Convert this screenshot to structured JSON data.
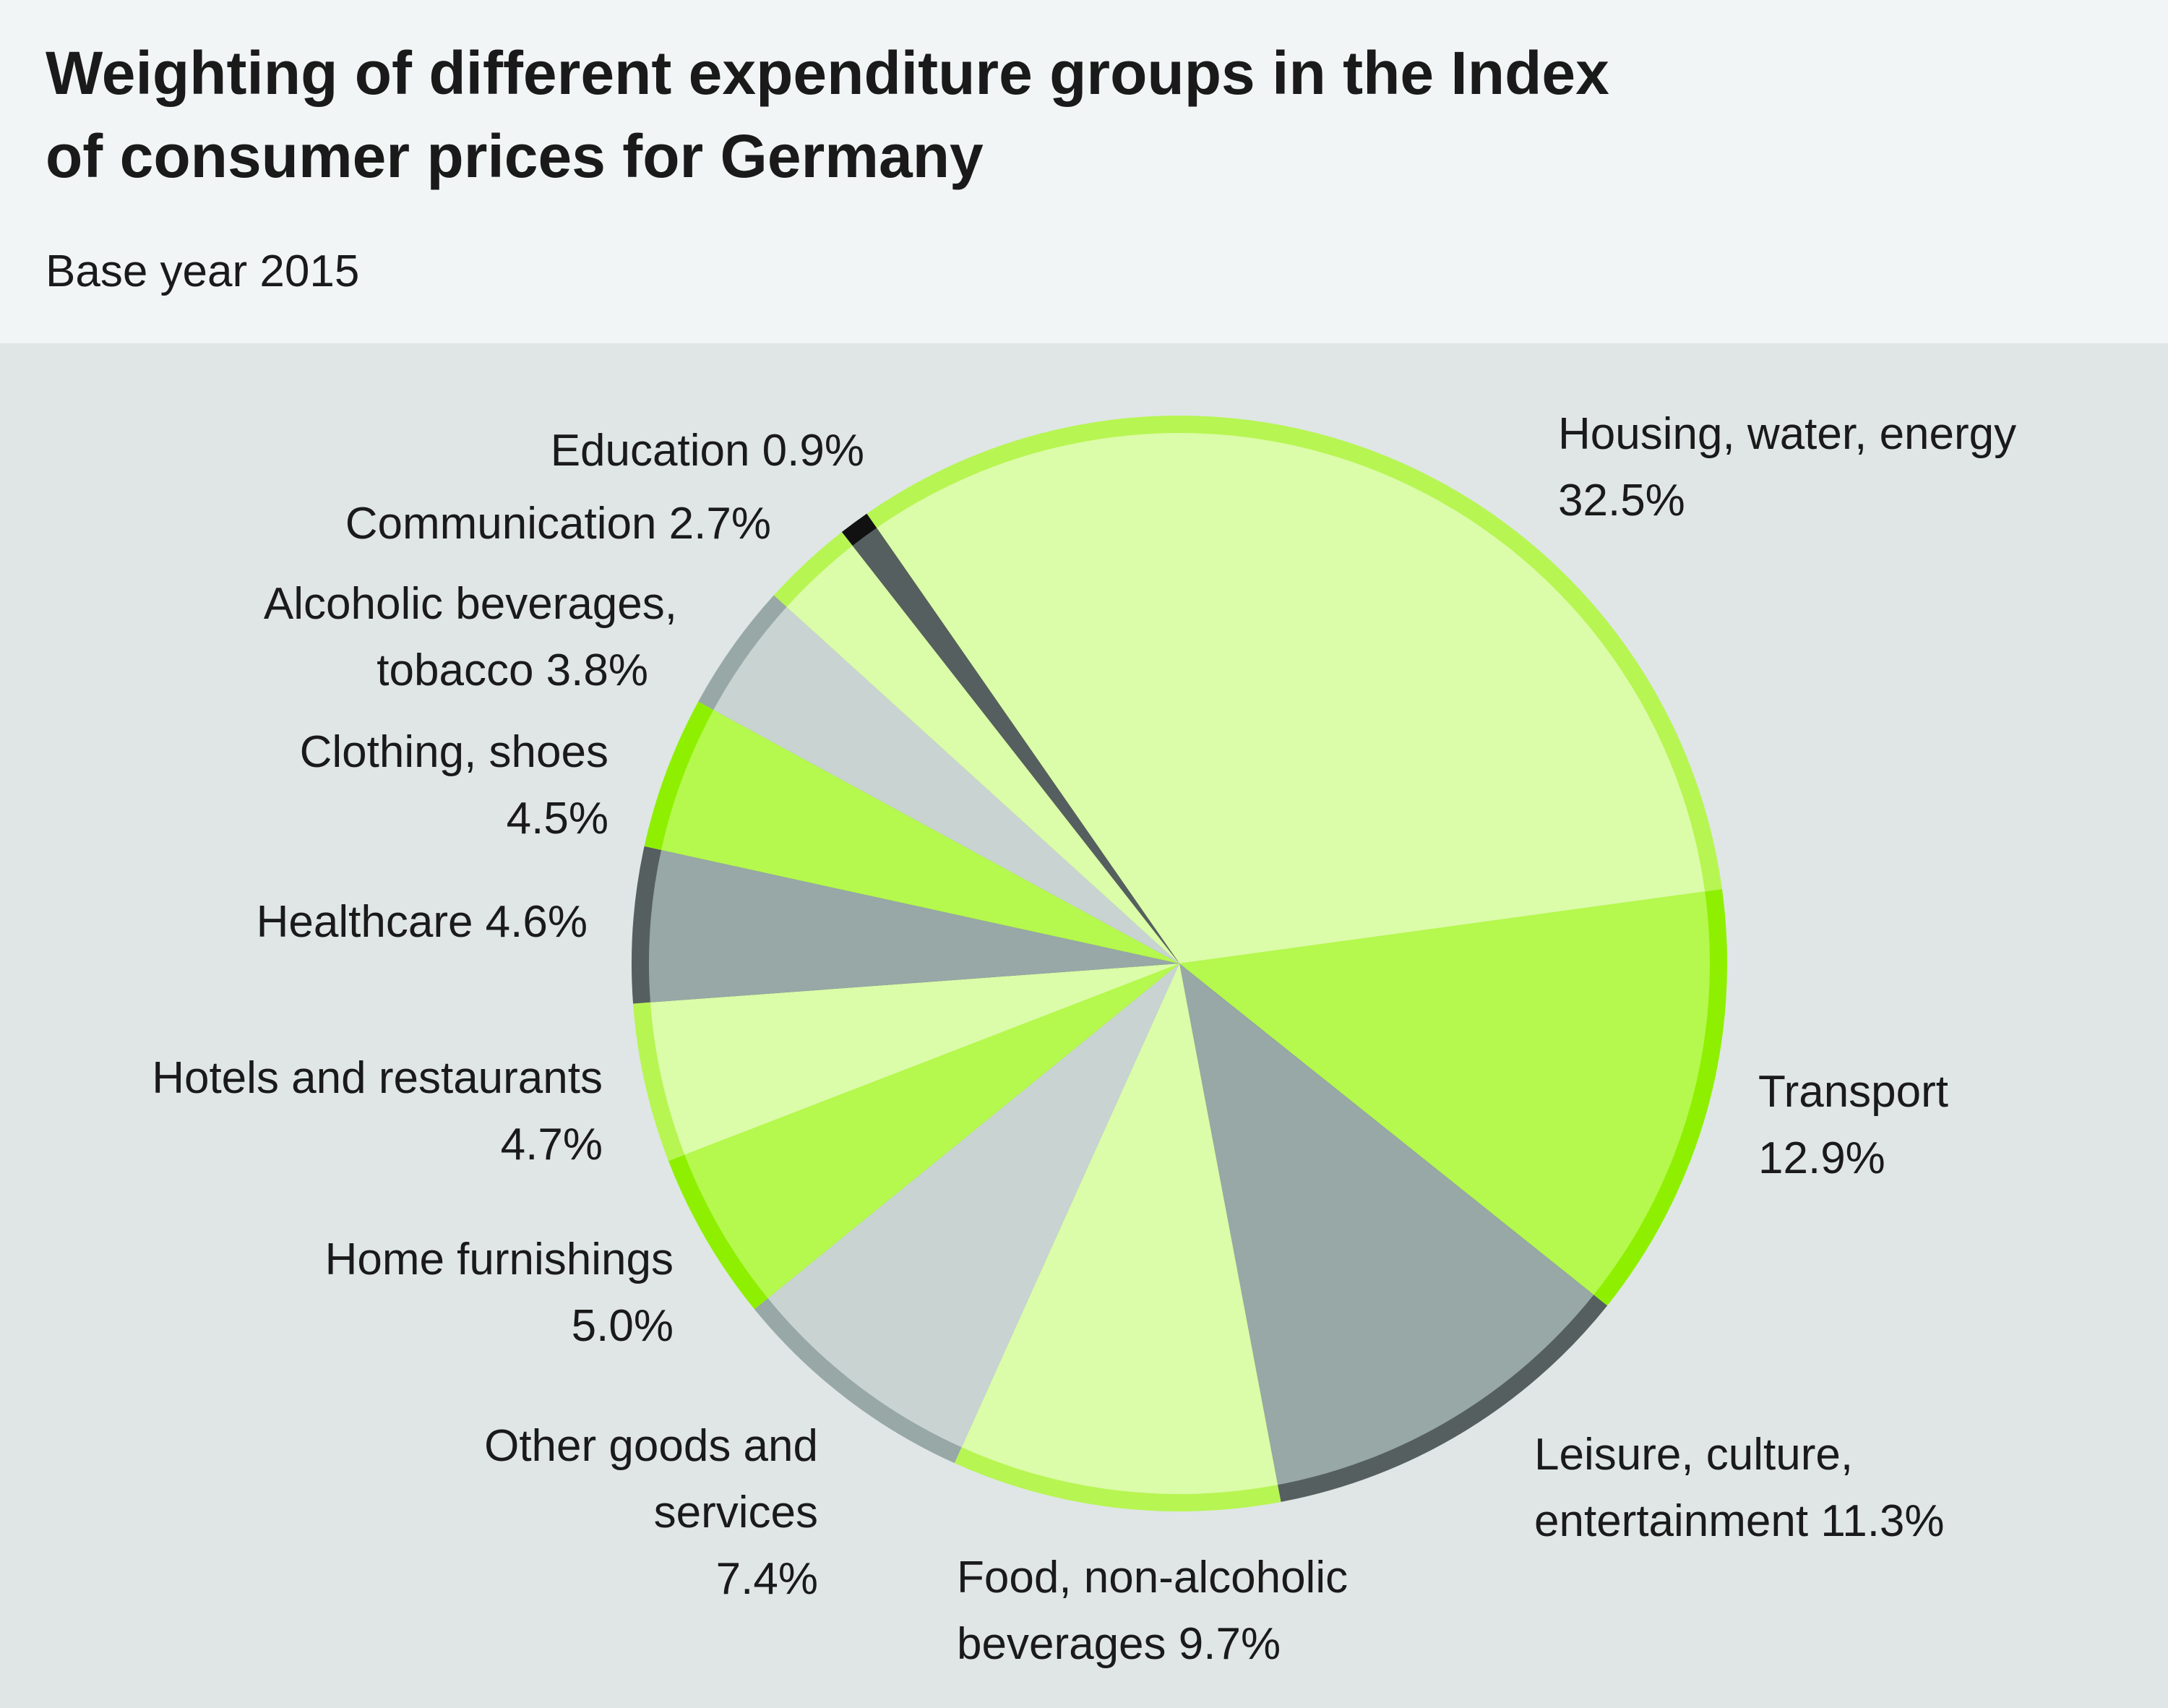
{
  "chart_data": {
    "type": "pie",
    "title": "Weighting of different expenditure groups in the Index of consumer prices for Germany",
    "subtitle": "Base year 2015",
    "unit": "%",
    "slices": [
      {
        "name": "Housing, water, energy",
        "value": 32.5,
        "label": [
          "Housing, water, energy",
          "32.5%"
        ],
        "fill": "#dbfca8",
        "rim": "#b7f552"
      },
      {
        "name": "Transport",
        "value": 12.9,
        "label": [
          "Transport",
          "12.9%"
        ],
        "fill": "#b5f84e",
        "rim": "#8ef000"
      },
      {
        "name": "Leisure, culture, entertainment",
        "value": 11.3,
        "label": [
          "Leisure, culture,",
          "entertainment 11.3%"
        ],
        "fill": "#97a8a6",
        "rim": "#555f5f"
      },
      {
        "name": "Food, non-alcoholic beverages",
        "value": 9.7,
        "label": [
          "Food, non-alcoholic",
          "beverages 9.7%"
        ],
        "fill": "#dbfca8",
        "rim": "#b7f552"
      },
      {
        "name": "Other goods and services",
        "value": 7.4,
        "label": [
          "Other goods and",
          "services",
          "7.4%"
        ],
        "fill": "#c8d3d2",
        "rim": "#97a8a6"
      },
      {
        "name": "Home furnishings",
        "value": 5.0,
        "label": [
          "Home furnishings",
          "5.0%"
        ],
        "fill": "#b5f84e",
        "rim": "#8ef000"
      },
      {
        "name": "Hotels and restaurants",
        "value": 4.7,
        "label": [
          "Hotels and restaurants",
          "4.7%"
        ],
        "fill": "#dbfca8",
        "rim": "#b7f552"
      },
      {
        "name": "Healthcare",
        "value": 4.6,
        "label": [
          "Healthcare 4.6%"
        ],
        "fill": "#97a8a6",
        "rim": "#555f5f"
      },
      {
        "name": "Clothing, shoes",
        "value": 4.5,
        "label": [
          "Clothing, shoes",
          "4.5%"
        ],
        "fill": "#b5f84e",
        "rim": "#8ef000"
      },
      {
        "name": "Alcoholic beverages, tobacco",
        "value": 3.8,
        "label": [
          "Alcoholic beverages,",
          "tobacco 3.8%"
        ],
        "fill": "#c8d3d2",
        "rim": "#97a8a6"
      },
      {
        "name": "Communication",
        "value": 2.7,
        "label": [
          "Communication 2.7%"
        ],
        "fill": "#dbfca8",
        "rim": "#b7f552"
      },
      {
        "name": "Education",
        "value": 0.9,
        "label": [
          "Education 0.9%"
        ],
        "fill": "#555f5f",
        "rim": "#111111"
      }
    ],
    "direction": "clockwise",
    "legend": "none"
  },
  "colors": {
    "header_bg": "#f2f5f5",
    "chart_bg": "#dfe6e5"
  }
}
